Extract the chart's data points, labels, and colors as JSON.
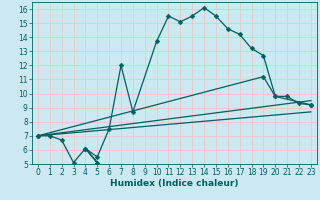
{
  "xlabel": "Humidex (Indice chaleur)",
  "bg_color": "#cce8f0",
  "grid_color": "#e8c8c8",
  "line_color": "#006060",
  "xlim": [
    -0.5,
    23.5
  ],
  "ylim": [
    5,
    16.5
  ],
  "xticks": [
    0,
    1,
    2,
    3,
    4,
    5,
    6,
    7,
    8,
    9,
    10,
    11,
    12,
    13,
    14,
    15,
    16,
    17,
    18,
    19,
    20,
    21,
    22,
    23
  ],
  "yticks": [
    5,
    6,
    7,
    8,
    9,
    10,
    11,
    12,
    13,
    14,
    15,
    16
  ],
  "series1_x": [
    0,
    1,
    2,
    3,
    4,
    5,
    4,
    5,
    6,
    7,
    8,
    10,
    11,
    12,
    13,
    14,
    15,
    16,
    17,
    18,
    19,
    20,
    21,
    22,
    23
  ],
  "series1_y": [
    7,
    7,
    6.7,
    5.1,
    6.1,
    5.1,
    6.1,
    5.5,
    7.5,
    12.0,
    8.7,
    13.7,
    15.5,
    15.1,
    15.5,
    16.1,
    15.5,
    14.6,
    14.2,
    13.2,
    12.7,
    9.8,
    9.8,
    9.3,
    9.2
  ],
  "series2_x": [
    0,
    19,
    20,
    23
  ],
  "series2_y": [
    7.0,
    11.2,
    9.8,
    9.2
  ],
  "series3_x": [
    0,
    23
  ],
  "series3_y": [
    7.0,
    9.5
  ],
  "series4_x": [
    0,
    23
  ],
  "series4_y": [
    7.0,
    8.7
  ],
  "markersize": 2.5,
  "linewidth": 0.9
}
